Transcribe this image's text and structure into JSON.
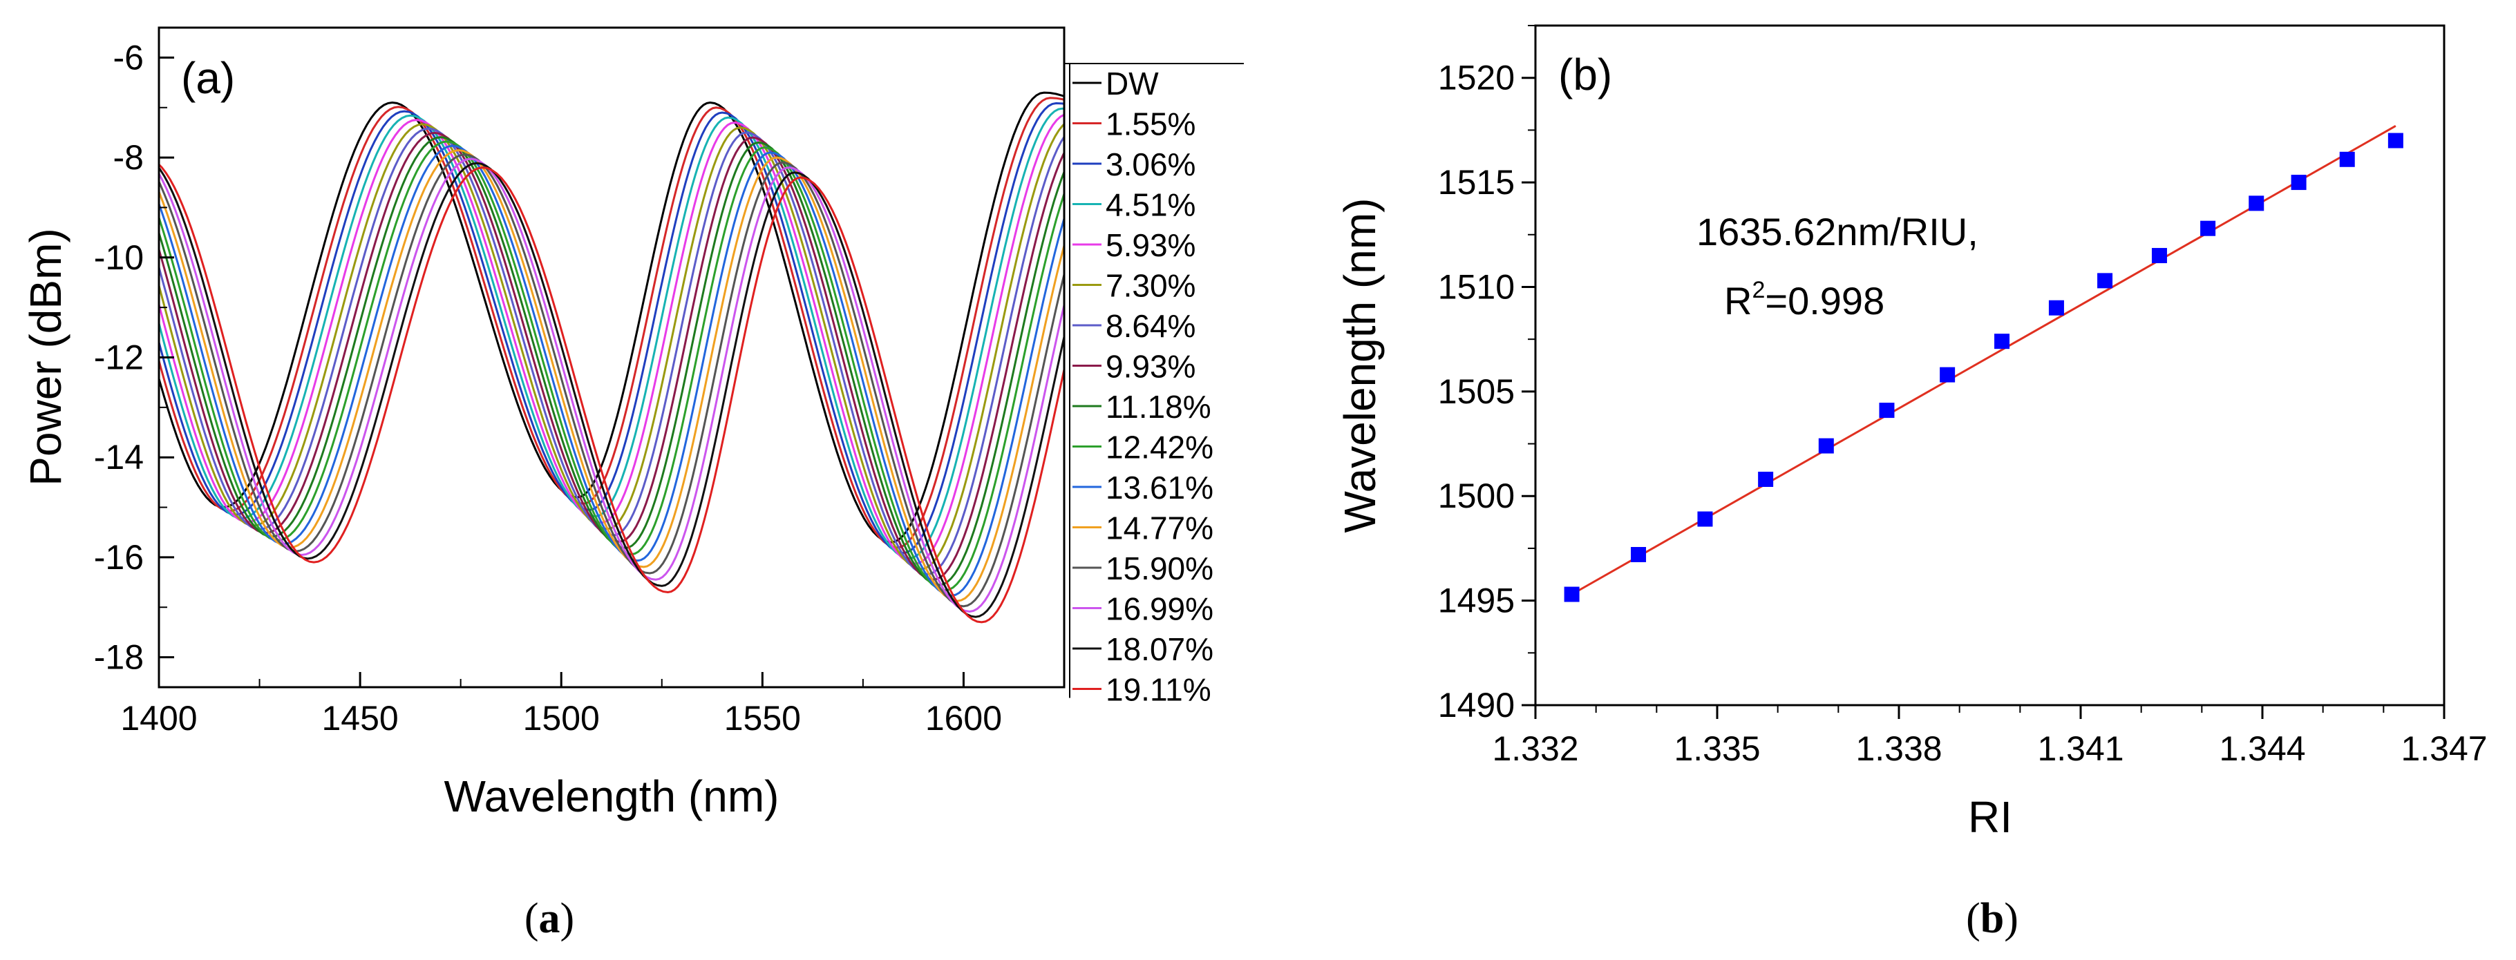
{
  "chart_data": [
    {
      "type": "line",
      "panel_label": "(a)",
      "caption_prefix": "(",
      "caption_bold": "a",
      "caption_suffix": ")",
      "xlabel": "Wavelength (nm)",
      "ylabel": "Power (dBm)",
      "xlim": [
        1400,
        1625
      ],
      "ylim": [
        -18.6,
        -5.4
      ],
      "xticks": [
        1400,
        1450,
        1500,
        1550,
        1600
      ],
      "yticks": [
        -6,
        -8,
        -10,
        -12,
        -14,
        -16,
        -18
      ],
      "legend_position": "right",
      "model_note": "Period",
      "series": [
        {
          "name": "DW",
          "color": "#000000",
          "dip1": 1416,
          "dip2": 1504,
          "dip3": 1582,
          "peak1": 1458,
          "peak2": 1537,
          "peak3": 1620
        },
        {
          "name": "1.55%",
          "color": "#d62728",
          "dip1": 1417.5,
          "dip2": 1505.5,
          "dip3": 1583.5,
          "peak1": 1459.5,
          "peak2": 1538.5,
          "peak3": 1621.5
        },
        {
          "name": "3.06%",
          "color": "#1f3fbf",
          "dip1": 1419,
          "dip2": 1507,
          "dip3": 1585,
          "peak1": 1461,
          "peak2": 1540,
          "peak3": 1623
        },
        {
          "name": "4.51%",
          "color": "#17b3b3",
          "dip1": 1420.5,
          "dip2": 1508.5,
          "dip3": 1586.5,
          "peak1": 1462.5,
          "peak2": 1541.5,
          "peak3": 1624.5
        },
        {
          "name": "5.93%",
          "color": "#e83be8",
          "dip1": 1422,
          "dip2": 1510,
          "dip3": 1588,
          "peak1": 1464,
          "peak2": 1543,
          "peak3": 1626
        },
        {
          "name": "7.30%",
          "color": "#9a9a10",
          "dip1": 1423.5,
          "dip2": 1511.5,
          "dip3": 1589.5,
          "peak1": 1465.5,
          "peak2": 1544.5,
          "peak3": 1627.5
        },
        {
          "name": "8.64%",
          "color": "#5c5cc9",
          "dip1": 1425,
          "dip2": 1513,
          "dip3": 1591,
          "peak1": 1467,
          "peak2": 1546,
          "peak3": 1629
        },
        {
          "name": "9.93%",
          "color": "#8b1a4a",
          "dip1": 1426.5,
          "dip2": 1514.5,
          "dip3": 1592.5,
          "peak1": 1468.5,
          "peak2": 1547.5,
          "peak3": 1630.5
        },
        {
          "name": "11.18%",
          "color": "#1e7a1e",
          "dip1": 1428,
          "dip2": 1516,
          "dip3": 1594,
          "peak1": 1470,
          "peak2": 1549,
          "peak3": 1632
        },
        {
          "name": "12.42%",
          "color": "#2ca02c",
          "dip1": 1429.5,
          "dip2": 1517.5,
          "dip3": 1595.5,
          "peak1": 1471.5,
          "peak2": 1550.5,
          "peak3": 1633.5
        },
        {
          "name": "13.61%",
          "color": "#2266dd",
          "dip1": 1431,
          "dip2": 1519,
          "dip3": 1597,
          "peak1": 1473,
          "peak2": 1552,
          "peak3": 1635
        },
        {
          "name": "14.77%",
          "color": "#f0a020",
          "dip1": 1432.5,
          "dip2": 1520.5,
          "dip3": 1598.5,
          "peak1": 1474.5,
          "peak2": 1553.5,
          "peak3": 1636.5
        },
        {
          "name": "15.90%",
          "color": "#555555",
          "dip1": 1434,
          "dip2": 1522,
          "dip3": 1600,
          "peak1": 1476,
          "peak2": 1555,
          "peak3": 1638
        },
        {
          "name": "16.99%",
          "color": "#cc55ee",
          "dip1": 1435.5,
          "dip2": 1523.5,
          "dip3": 1601.5,
          "peak1": 1477.5,
          "peak2": 1556.5,
          "peak3": 1639.5
        },
        {
          "name": "18.07%",
          "color": "#111111",
          "dip1": 1437,
          "dip2": 1525,
          "dip3": 1603,
          "peak1": 1479,
          "peak2": 1558,
          "peak3": 1641
        },
        {
          "name": "19.11%",
          "color": "#e02020",
          "dip1": 1438.5,
          "dip2": 1526.5,
          "dip3": 1604.5,
          "peak1": 1480.5,
          "peak2": 1559.5,
          "peak3": 1642.5
        }
      ]
    },
    {
      "type": "scatter",
      "panel_label": "(b)",
      "caption_prefix": "(",
      "caption_bold": "b",
      "caption_suffix": ")",
      "xlabel": "RI",
      "ylabel": "Wavelength (nm)",
      "xlim": [
        1.332,
        1.347
      ],
      "ylim": [
        1490,
        1522.5
      ],
      "xticks": [
        "1.332",
        "1.335",
        "1.338",
        "1.341",
        "1.344",
        "1.347"
      ],
      "yticks": [
        1490,
        1495,
        1500,
        1505,
        1510,
        1515,
        1520
      ],
      "annotation_line1": "1635.62nm/RIU,",
      "annotation_r2_prefix": "R",
      "annotation_r2_sup": "2",
      "annotation_r2_value": "=0.998",
      "marker_color": "#0000ff",
      "fit_color": "#e03020",
      "points": [
        {
          "x": 1.3326,
          "y": 1495.3
        },
        {
          "x": 1.3337,
          "y": 1497.2
        },
        {
          "x": 1.3348,
          "y": 1498.9
        },
        {
          "x": 1.3358,
          "y": 1500.8
        },
        {
          "x": 1.3368,
          "y": 1502.4
        },
        {
          "x": 1.3378,
          "y": 1504.1
        },
        {
          "x": 1.3388,
          "y": 1505.8
        },
        {
          "x": 1.3397,
          "y": 1507.4
        },
        {
          "x": 1.3406,
          "y": 1509.0
        },
        {
          "x": 1.3414,
          "y": 1510.3
        },
        {
          "x": 1.3423,
          "y": 1511.5
        },
        {
          "x": 1.3431,
          "y": 1512.8
        },
        {
          "x": 1.3439,
          "y": 1514.0
        },
        {
          "x": 1.3446,
          "y": 1515.0
        },
        {
          "x": 1.3454,
          "y": 1516.1
        },
        {
          "x": 1.3462,
          "y": 1517.0
        }
      ],
      "fit": {
        "x0": 1.3326,
        "y0": 1495.3,
        "x1": 1.3462,
        "y1": 1517.7
      }
    }
  ]
}
